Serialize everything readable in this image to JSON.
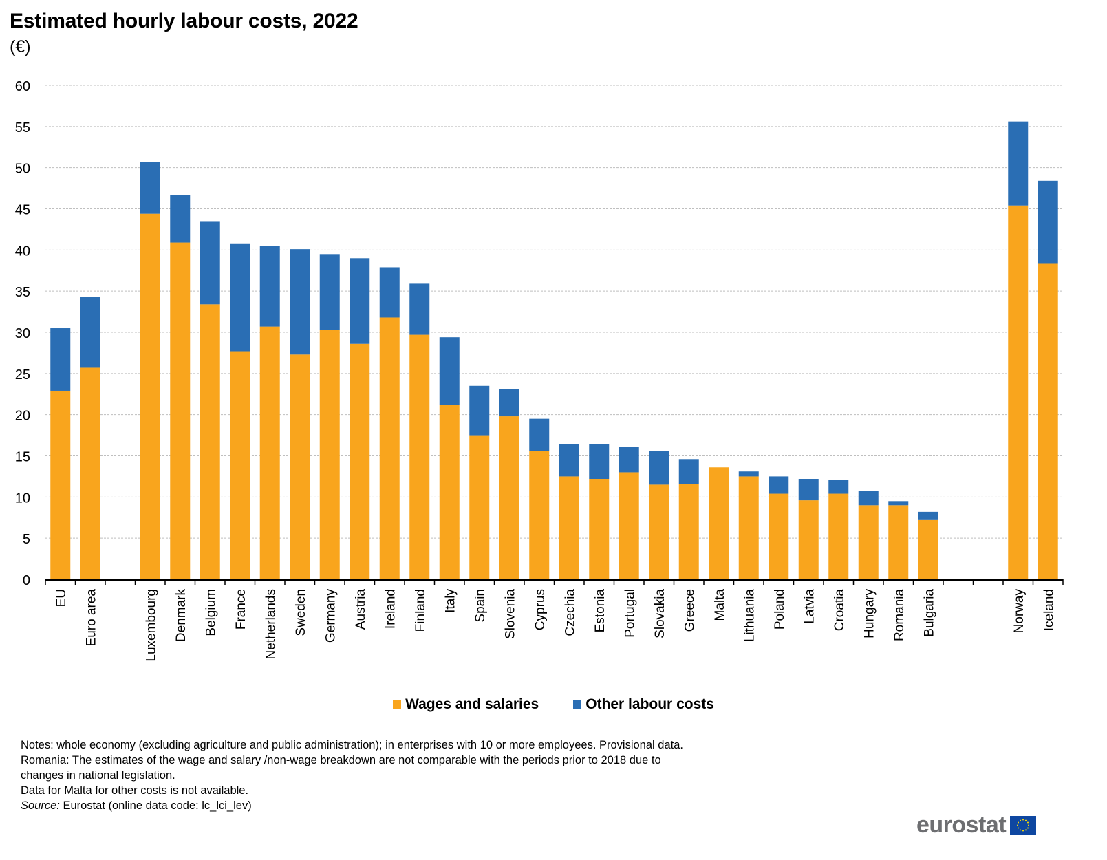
{
  "header": {
    "title": "Estimated hourly labour costs, 2022",
    "unit": "(€)"
  },
  "colors": {
    "wages": "#f9a51d",
    "other": "#2a6eb4",
    "grid": "#bfbfbf",
    "axis": "#000000"
  },
  "chart_data": {
    "type": "bar",
    "stacked": true,
    "title": "Estimated hourly labour costs, 2022",
    "subtitle": "(€)",
    "xlabel": "",
    "ylabel": "€",
    "ylim": [
      0,
      60
    ],
    "yticks": [
      0,
      5,
      10,
      15,
      20,
      25,
      30,
      35,
      40,
      45,
      50,
      55,
      60
    ],
    "grid": true,
    "legend_position": "bottom",
    "categories": [
      "EU",
      "Euro area",
      "",
      "Luxembourg",
      "Denmark",
      "Belgium",
      "France",
      "Netherlands",
      "Sweden",
      "Germany",
      "Austria",
      "Ireland",
      "Finland",
      "Italy",
      "Spain",
      "Slovenia",
      "Cyprus",
      "Czechia",
      "Estonia",
      "Portugal",
      "Slovakia",
      "Greece",
      "Malta",
      "Lithuania",
      "Poland",
      "Latvia",
      "Croatia",
      "Hungary",
      "Romania",
      "Bulgaria",
      "",
      "Norway",
      "Iceland"
    ],
    "series": [
      {
        "name": "Wages and salaries",
        "color": "#f9a51d",
        "values": [
          22.9,
          25.7,
          null,
          44.4,
          40.9,
          33.4,
          27.7,
          30.7,
          27.3,
          30.3,
          28.6,
          31.8,
          29.7,
          21.2,
          17.5,
          19.8,
          15.6,
          12.5,
          12.2,
          13.0,
          11.5,
          11.6,
          13.6,
          12.5,
          10.4,
          9.6,
          10.4,
          9.0,
          9.0,
          7.2,
          null,
          45.4,
          38.4
        ]
      },
      {
        "name": "Other labour costs",
        "color": "#2a6eb4",
        "values": [
          7.6,
          8.6,
          null,
          6.3,
          5.8,
          10.1,
          13.1,
          9.8,
          12.8,
          9.2,
          10.4,
          6.1,
          6.2,
          8.2,
          6.0,
          3.3,
          3.9,
          3.9,
          4.2,
          3.1,
          4.1,
          3.0,
          null,
          0.6,
          2.1,
          2.6,
          1.7,
          1.7,
          0.5,
          1.0,
          null,
          10.2,
          10.0
        ]
      }
    ]
  },
  "legend": {
    "items": [
      {
        "label": "Wages and salaries"
      },
      {
        "label": "Other labour costs"
      }
    ]
  },
  "notes": {
    "line1": "Notes: whole economy (excluding agriculture and public administration); in enterprises with 10 or more employees. Provisional data.",
    "line2": "Romania: The estimates of the wage and salary /non-wage breakdown are not comparable with the periods prior to 2018 due to",
    "line3": "changes in national legislation.",
    "line4": "Data for Malta for other costs is not available.",
    "source_label": "Source:",
    "source_text": " Eurostat (online data code: lc_lci_lev)"
  },
  "logo": {
    "text": "eurostat"
  }
}
